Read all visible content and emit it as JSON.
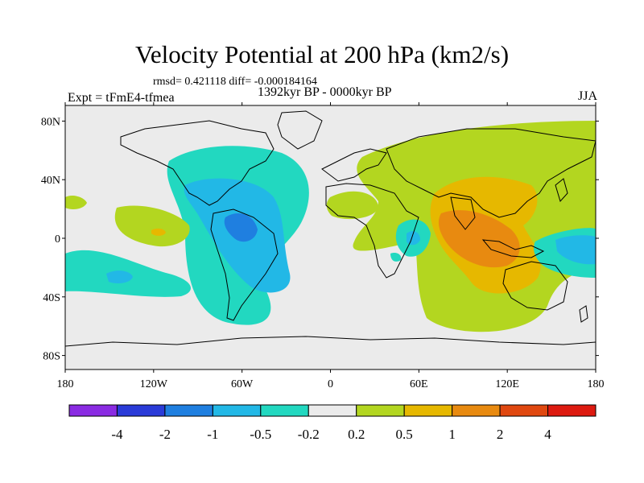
{
  "title": "Velocity Potential at 200 hPa (km2/s)",
  "stats": "rmsd= 0.421118 diff= -0.000184164",
  "experiment": "Expt = tFmE4-tfmea",
  "period": "1392kyr BP - 0000kyr BP",
  "season": "JJA",
  "lat_ticks": [
    {
      "label": "80N",
      "lat": 80
    },
    {
      "label": "40N",
      "lat": 40
    },
    {
      "label": "0",
      "lat": 0
    },
    {
      "label": "40S",
      "lat": -40
    },
    {
      "label": "80S",
      "lat": -80
    }
  ],
  "lon_ticks": [
    {
      "label": "180",
      "lon": -180
    },
    {
      "label": "120W",
      "lon": -120
    },
    {
      "label": "60W",
      "lon": -60
    },
    {
      "label": "0",
      "lon": 0
    },
    {
      "label": "60E",
      "lon": 60
    },
    {
      "label": "120E",
      "lon": 120
    },
    {
      "label": "180",
      "lon": 180
    }
  ],
  "colorbar": {
    "colors": [
      "#8a2be2",
      "#2a3bd8",
      "#1f7fe0",
      "#22b8e6",
      "#22d8c0",
      "#ebebeb",
      "#b3d620",
      "#e6b800",
      "#e88a10",
      "#e04810",
      "#dd1a10"
    ],
    "labels": [
      "-4",
      "-2",
      "-1",
      "-0.5",
      "-0.2",
      "0.2",
      "0.5",
      "1",
      "2",
      "4"
    ]
  },
  "colors": {
    "background": "#ebebeb",
    "land": "#000000"
  }
}
